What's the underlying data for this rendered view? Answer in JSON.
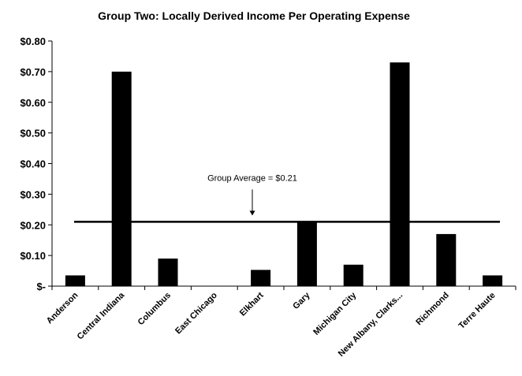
{
  "chart_data": {
    "type": "bar",
    "title": "Group Two:  Locally Derived Income Per Operating Expense",
    "xlabel": "",
    "ylabel": "",
    "categories": [
      "Anderson",
      "Central Indiana",
      "Columbus",
      "East Chicago",
      "Elkhart",
      "Gary",
      "Michigan City",
      "New Albany, Clarks...",
      "Richmond",
      "Terre Haute"
    ],
    "values": [
      0.035,
      0.7,
      0.09,
      0.0,
      0.053,
      0.21,
      0.07,
      0.73,
      0.17,
      0.035
    ],
    "ylim": [
      0,
      0.8
    ],
    "yticks": [
      0,
      0.1,
      0.2,
      0.3,
      0.4,
      0.5,
      0.6,
      0.7,
      0.8
    ],
    "ytick_labels": [
      "$-",
      "$0.10",
      "$0.20",
      "$0.30",
      "$0.40",
      "$0.50",
      "$0.60",
      "$0.70",
      "$0.80"
    ],
    "average_line": {
      "value": 0.21,
      "label": "Group Average = $0.21"
    },
    "bar_color": "#000000",
    "grid": false,
    "legend": "none"
  }
}
